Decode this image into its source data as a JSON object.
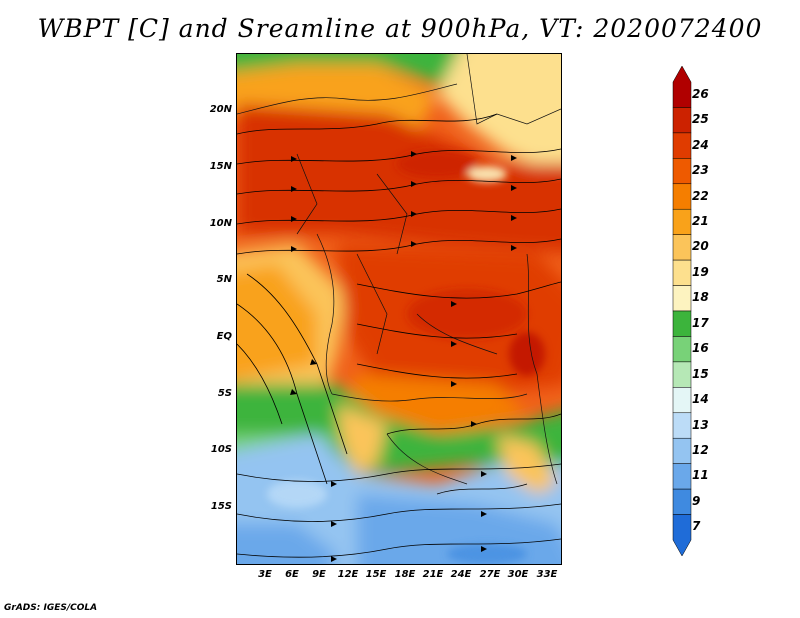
{
  "title": "WBPT [C] and Sreamline at 900hPa, VT: 2020072400",
  "footer": "GrADS: IGES/COLA",
  "map": {
    "lat_labels": [
      "20N",
      "15N",
      "10N",
      "5N",
      "EQ",
      "5S",
      "10S",
      "15S"
    ],
    "lon_labels": [
      "3E",
      "6E",
      "9E",
      "12E",
      "15E",
      "18E",
      "21E",
      "24E",
      "27E",
      "30E",
      "33E"
    ],
    "regions": {
      "north_strip": "17-19",
      "sahel_belt": "23-25",
      "west_coast": "19-21",
      "central_africa": "23-24",
      "congo_south": "21-22",
      "southern_band": "16-17",
      "south_interior": "12-14"
    }
  },
  "colorbar": {
    "labels": [
      "26",
      "25",
      "24",
      "23",
      "22",
      "21",
      "20",
      "19",
      "18",
      "17",
      "16",
      "15",
      "14",
      "13",
      "12",
      "11",
      "9",
      "7"
    ],
    "colors": [
      "#b00000",
      "#cc2200",
      "#e03c00",
      "#ee5a00",
      "#f57e00",
      "#f9a21a",
      "#fbc45a",
      "#fde08e",
      "#fdf3c0",
      "#3cb43c",
      "#78d278",
      "#b6e8b6",
      "#e4f6f6",
      "#bcdcf7",
      "#94c4f1",
      "#6aa8ea",
      "#3f8ae0",
      "#1f6cd8"
    ]
  }
}
